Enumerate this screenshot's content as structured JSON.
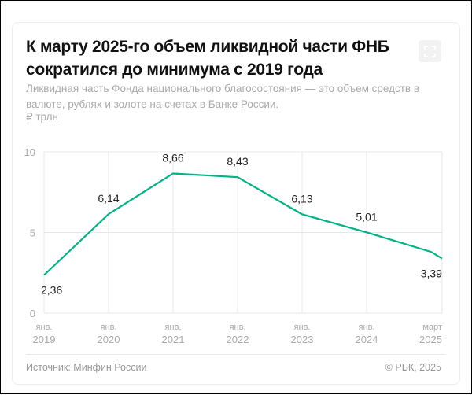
{
  "title": "К марту 2025-го объем ликвидной части ФНБ сократился до минимума с 2019 года",
  "subtitle": "Ликвидная часть Фонда национального благосостояния — это объем средств в валюте, рублях и золоте на счетах в Банке России.",
  "unit": "₽ трлн",
  "source": "Источник: Минфин России",
  "copyright": "© РБК, 2025",
  "expand_icon": "expand-icon",
  "colors": {
    "line": "#00b386",
    "grid": "#e8e8e8",
    "axis_text": "#aaa"
  },
  "chart_data": {
    "type": "line",
    "ylim": [
      0,
      10
    ],
    "yticks": [
      "0",
      "5",
      "10"
    ],
    "grid": true,
    "xticks": [
      {
        "line1": "янв.",
        "line2": "2019",
        "x": 2019.0
      },
      {
        "line1": "янв.",
        "line2": "2020",
        "x": 2020.0
      },
      {
        "line1": "янв.",
        "line2": "2021",
        "x": 2021.0
      },
      {
        "line1": "янв.",
        "line2": "2022",
        "x": 2022.0
      },
      {
        "line1": "янв.",
        "line2": "2023",
        "x": 2023.0
      },
      {
        "line1": "янв.",
        "line2": "2024",
        "x": 2024.0
      },
      {
        "line1": "март",
        "line2": "2025",
        "x": 2025.17
      }
    ],
    "points": [
      {
        "x": 2019.0,
        "y": 2.36,
        "label": "2,36"
      },
      {
        "x": 2020.0,
        "y": 6.14,
        "label": "6,14"
      },
      {
        "x": 2021.0,
        "y": 8.66,
        "label": "8,66"
      },
      {
        "x": 2022.0,
        "y": 8.43,
        "label": "8,43"
      },
      {
        "x": 2023.0,
        "y": 6.13,
        "label": "6,13"
      },
      {
        "x": 2024.0,
        "y": 5.01,
        "label": "5,01"
      },
      {
        "x": 2025.0,
        "y": 3.8,
        "label": ""
      },
      {
        "x": 2025.17,
        "y": 3.39,
        "label": "3,39"
      }
    ]
  }
}
